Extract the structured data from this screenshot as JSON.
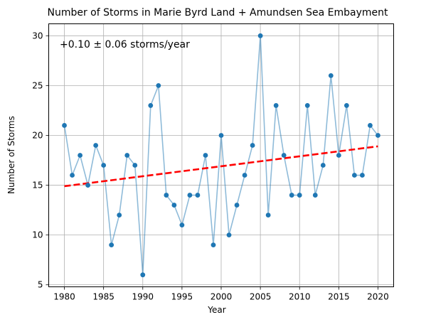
{
  "chart_data": {
    "type": "scatter",
    "title": "Number of Storms in Marie Byrd Land + Amundsen Sea Embayment",
    "xlabel": "Year",
    "ylabel": "Number of Storms",
    "xlim": [
      1978,
      2022
    ],
    "ylim": [
      4.8,
      31.2
    ],
    "xticks": [
      1980,
      1985,
      1990,
      1995,
      2000,
      2005,
      2010,
      2015,
      2020
    ],
    "yticks": [
      5,
      10,
      15,
      20,
      25,
      30
    ],
    "grid": true,
    "annotation": "+0.10 ± 0.06 storms/year",
    "series": [
      {
        "style": "line+markers",
        "color": "#1f77b4",
        "line_alpha": 0.5,
        "x": [
          1980,
          1981,
          1982,
          1983,
          1984,
          1985,
          1986,
          1987,
          1988,
          1989,
          1990,
          1991,
          1992,
          1993,
          1994,
          1995,
          1996,
          1997,
          1998,
          1999,
          2000,
          2001,
          2002,
          2003,
          2004,
          2005,
          2006,
          2007,
          2008,
          2009,
          2010,
          2011,
          2012,
          2013,
          2014,
          2015,
          2016,
          2017,
          2018,
          2019,
          2020
        ],
        "y": [
          21,
          16,
          18,
          15,
          19,
          17,
          9,
          12,
          18,
          17,
          6,
          23,
          25,
          14,
          13,
          11,
          14,
          14,
          18,
          9,
          20,
          10,
          13,
          16,
          19,
          30,
          12,
          23,
          18,
          14,
          14,
          23,
          14,
          17,
          26,
          18,
          23,
          16,
          16,
          21,
          20
        ]
      }
    ],
    "trend": {
      "style": "dashed",
      "color": "#ff0000",
      "x": [
        1980,
        2020
      ],
      "y": [
        14.9,
        18.9
      ]
    }
  }
}
